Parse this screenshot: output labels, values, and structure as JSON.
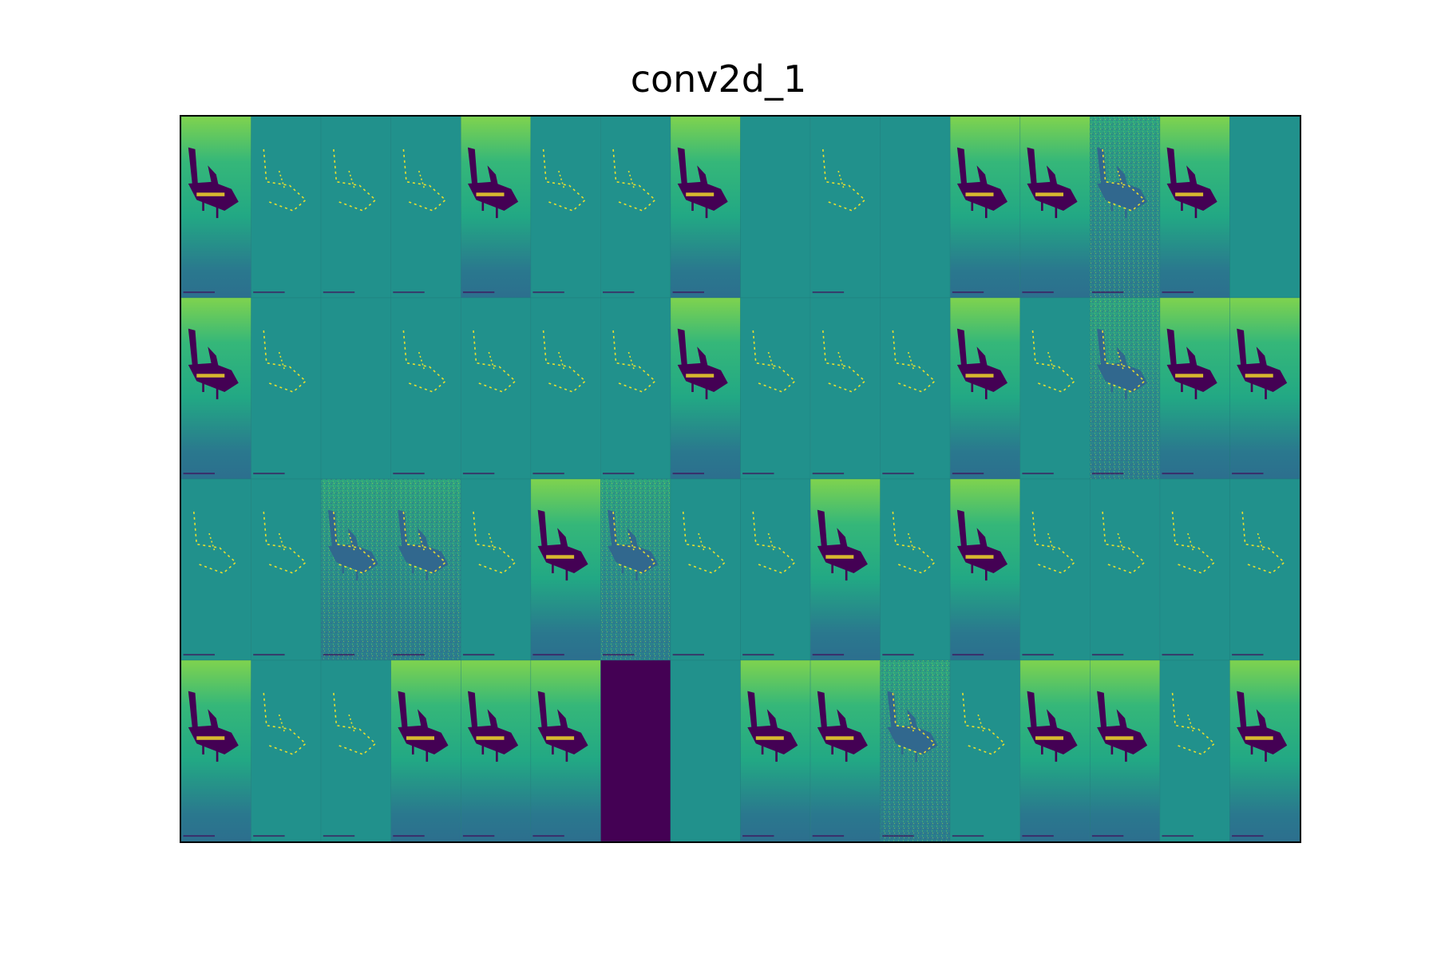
{
  "title": "conv2d_1",
  "chart_data": {
    "type": "heatmap",
    "title": "conv2d_1",
    "description_grid": {
      "rows": 4,
      "cols": 16
    },
    "colormap": "viridis",
    "colormap_stops": [
      "#440154",
      "#3b528b",
      "#21918c",
      "#5ec962",
      "#fde725"
    ],
    "axes_visible": false,
    "tiles": [
      [
        "full",
        "edges",
        "edges",
        "edges",
        "full",
        "edges",
        "edges",
        "full",
        "blank",
        "edges",
        "blank",
        "full",
        "full",
        "noisy",
        "full",
        "blank"
      ],
      [
        "full",
        "edges",
        "blank",
        "edges",
        "edges",
        "edges",
        "edges",
        "full",
        "edges",
        "edges",
        "edges",
        "full",
        "edges",
        "noisy",
        "full",
        "full"
      ],
      [
        "edges",
        "edges",
        "noisy",
        "noisy",
        "edges",
        "full",
        "noisy",
        "edges",
        "edges",
        "full",
        "edges",
        "full",
        "edges",
        "edges",
        "edges",
        "edges"
      ],
      [
        "full",
        "edges",
        "edges",
        "full",
        "full",
        "full",
        "dead",
        "blank",
        "full",
        "full",
        "noisy",
        "edges",
        "full",
        "full",
        "edges",
        "full"
      ]
    ]
  }
}
